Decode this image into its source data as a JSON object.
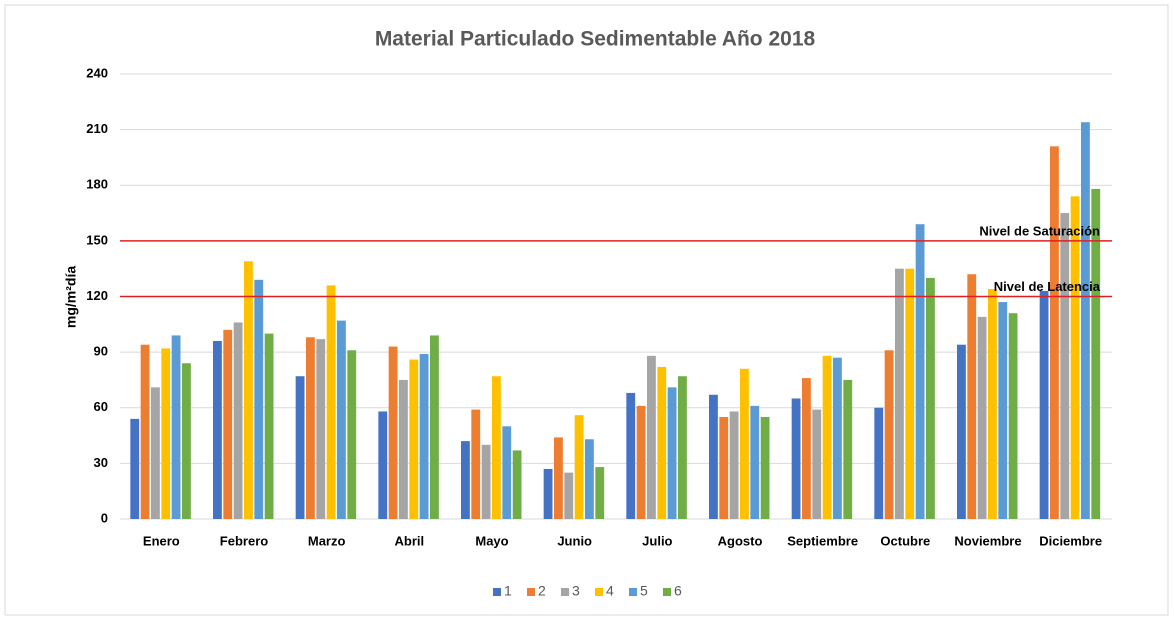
{
  "chart_data": {
    "type": "bar",
    "title": "Material Particulado Sedimentable Año 2018",
    "y_label": "mg/m²día",
    "categories": [
      "Enero",
      "Febrero",
      "Marzo",
      "Abril",
      "Mayo",
      "Junio",
      "Julio",
      "Agosto",
      "Septiembre",
      "Octubre",
      "Noviembre",
      "Diciembre"
    ],
    "series": [
      {
        "name": "1",
        "color": "#4472c4",
        "values": [
          54,
          96,
          77,
          58,
          42,
          27,
          68,
          67,
          65,
          60,
          94,
          123
        ]
      },
      {
        "name": "2",
        "color": "#ed7d31",
        "values": [
          94,
          102,
          98,
          93,
          59,
          44,
          61,
          55,
          76,
          91,
          132,
          201
        ]
      },
      {
        "name": "3",
        "color": "#a5a5a5",
        "values": [
          71,
          106,
          97,
          75,
          40,
          25,
          88,
          58,
          59,
          135,
          109,
          165
        ]
      },
      {
        "name": "4",
        "color": "#ffc000",
        "values": [
          92,
          139,
          126,
          86,
          77,
          56,
          82,
          81,
          88,
          135,
          124,
          174
        ]
      },
      {
        "name": "5",
        "color": "#5b9bd5",
        "values": [
          99,
          129,
          107,
          89,
          50,
          43,
          71,
          61,
          87,
          159,
          117,
          214
        ]
      },
      {
        "name": "6",
        "color": "#70ad47",
        "values": [
          84,
          100,
          91,
          99,
          37,
          28,
          77,
          55,
          75,
          130,
          111,
          178
        ]
      }
    ],
    "reference_lines": [
      {
        "value": 150,
        "label": "Nivel de Saturación",
        "color": "#e02020"
      },
      {
        "value": 120,
        "label": "Nivel de Latencia",
        "color": "#e02020"
      }
    ],
    "ylim": [
      0,
      240
    ],
    "yticks": [
      0,
      30,
      60,
      90,
      120,
      150,
      180,
      210,
      240
    ],
    "grid": true,
    "legend": "bottom"
  }
}
